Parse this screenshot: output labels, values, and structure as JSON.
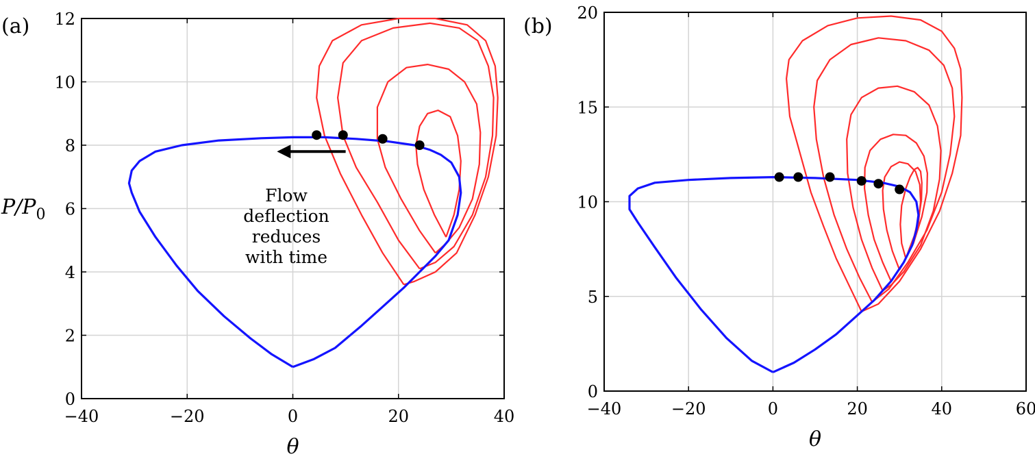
{
  "colors": {
    "polar": "#1414ff",
    "reflected": "#ff2b2b",
    "marker": "#000000",
    "grid": "#d4d4d4"
  },
  "chart_data": [
    {
      "type": "line",
      "panel_label": "(a)",
      "xlabel": "θ",
      "ylabel": "P/P",
      "ylabel_sub": "0",
      "xlim": [
        -40,
        40
      ],
      "ylim": [
        0,
        12
      ],
      "xticks": [
        -40,
        -20,
        0,
        20,
        40
      ],
      "yticks": [
        0,
        2,
        4,
        6,
        8,
        10,
        12
      ],
      "xtick_labels": [
        "−40",
        "−20",
        "0",
        "20",
        "40"
      ],
      "ytick_labels": [
        "0",
        "2",
        "4",
        "6",
        "8",
        "10",
        "12"
      ],
      "grid": true,
      "annotation": {
        "lines": [
          "Flow",
          "deflection",
          "reduces",
          "with time"
        ],
        "arrow_from": [
          10,
          7.8
        ],
        "arrow_to": [
          -3,
          7.8
        ]
      },
      "blue_polar": [
        [
          0,
          1
        ],
        [
          -4,
          1.4
        ],
        [
          -8,
          1.9
        ],
        [
          -13,
          2.6
        ],
        [
          -18,
          3.4
        ],
        [
          -22,
          4.2
        ],
        [
          -26,
          5.1
        ],
        [
          -29,
          5.9
        ],
        [
          -30.5,
          6.5
        ],
        [
          -31,
          6.8
        ],
        [
          -30.5,
          7.2
        ],
        [
          -29,
          7.5
        ],
        [
          -26,
          7.8
        ],
        [
          -21,
          8.0
        ],
        [
          -14,
          8.15
        ],
        [
          -6,
          8.22
        ],
        [
          0,
          8.25
        ],
        [
          6,
          8.25
        ],
        [
          12,
          8.2
        ],
        [
          18,
          8.12
        ],
        [
          23,
          8.0
        ],
        [
          26,
          7.85
        ],
        [
          28,
          7.7
        ],
        [
          30,
          7.45
        ],
        [
          31.5,
          7.0
        ],
        [
          31.8,
          6.5
        ],
        [
          31.2,
          5.8
        ],
        [
          29.5,
          5.0
        ],
        [
          27,
          4.5
        ],
        [
          24,
          4.0
        ],
        [
          21,
          3.5
        ],
        [
          17,
          2.9
        ],
        [
          13,
          2.3
        ],
        [
          8,
          1.6
        ],
        [
          4,
          1.25
        ],
        [
          0,
          1
        ]
      ],
      "red_polars": [
        [
          [
            21,
            3.6
          ],
          [
            17,
            4.6
          ],
          [
            13,
            5.8
          ],
          [
            9,
            7.1
          ],
          [
            6,
            8.3
          ],
          [
            4.5,
            9.5
          ],
          [
            5,
            10.5
          ],
          [
            7.5,
            11.3
          ],
          [
            13,
            11.8
          ],
          [
            20,
            12.0
          ],
          [
            27,
            12.0
          ],
          [
            33,
            11.8
          ],
          [
            36.5,
            11.3
          ],
          [
            38.3,
            10.5
          ],
          [
            38.8,
            9.5
          ],
          [
            38.5,
            8.3
          ],
          [
            37,
            7.0
          ],
          [
            34.5,
            5.8
          ],
          [
            31,
            4.6
          ],
          [
            27,
            4.0
          ],
          [
            23,
            3.7
          ],
          [
            21,
            3.6
          ]
        ],
        [
          [
            24,
            4.1
          ],
          [
            20,
            5.0
          ],
          [
            16,
            6.2
          ],
          [
            12,
            7.3
          ],
          [
            9.5,
            8.3
          ],
          [
            8.5,
            9.5
          ],
          [
            9.5,
            10.6
          ],
          [
            13,
            11.3
          ],
          [
            19,
            11.7
          ],
          [
            26,
            11.85
          ],
          [
            31.5,
            11.7
          ],
          [
            35,
            11.3
          ],
          [
            37,
            10.5
          ],
          [
            38,
            9.5
          ],
          [
            37.8,
            8.3
          ],
          [
            36.5,
            7.0
          ],
          [
            34,
            5.8
          ],
          [
            30.5,
            4.8
          ],
          [
            27,
            4.3
          ],
          [
            24,
            4.1
          ]
        ],
        [
          [
            27,
            4.6
          ],
          [
            24,
            5.3
          ],
          [
            20.5,
            6.3
          ],
          [
            17.5,
            7.3
          ],
          [
            16,
            8.2
          ],
          [
            16,
            9.2
          ],
          [
            18,
            10.0
          ],
          [
            21.5,
            10.45
          ],
          [
            25.5,
            10.55
          ],
          [
            29.5,
            10.4
          ],
          [
            32.5,
            10.0
          ],
          [
            34.8,
            9.3
          ],
          [
            35.5,
            8.4
          ],
          [
            35.3,
            7.4
          ],
          [
            34,
            6.3
          ],
          [
            31.5,
            5.4
          ],
          [
            29,
            4.9
          ],
          [
            27,
            4.6
          ]
        ],
        [
          [
            29,
            5.1
          ],
          [
            26.8,
            5.8
          ],
          [
            24.8,
            6.6
          ],
          [
            23.6,
            7.4
          ],
          [
            23.3,
            8.0
          ],
          [
            24,
            8.6
          ],
          [
            25.5,
            9.0
          ],
          [
            27.5,
            9.1
          ],
          [
            29.8,
            8.9
          ],
          [
            31.2,
            8.3
          ],
          [
            31.8,
            7.5
          ],
          [
            31.5,
            6.6
          ],
          [
            30.5,
            5.8
          ],
          [
            29,
            5.1
          ]
        ]
      ],
      "markers": [
        [
          4.5,
          8.32
        ],
        [
          9.5,
          8.32
        ],
        [
          17,
          8.2
        ],
        [
          24,
          8.0
        ]
      ]
    },
    {
      "type": "line",
      "panel_label": "(b)",
      "xlabel": "θ",
      "ylabel": "",
      "xlim": [
        -40,
        60
      ],
      "ylim": [
        0,
        20
      ],
      "xticks": [
        -40,
        -20,
        0,
        20,
        40,
        60
      ],
      "yticks": [
        0,
        5,
        10,
        15,
        20
      ],
      "xtick_labels": [
        "−40",
        "−20",
        "0",
        "20",
        "40",
        "60"
      ],
      "ytick_labels": [
        "0",
        "5",
        "10",
        "15",
        "20"
      ],
      "grid": true,
      "blue_polar": [
        [
          0,
          1
        ],
        [
          -5,
          1.6
        ],
        [
          -11,
          2.8
        ],
        [
          -17,
          4.3
        ],
        [
          -23,
          6.0
        ],
        [
          -28,
          7.6
        ],
        [
          -32,
          8.9
        ],
        [
          -34,
          9.6
        ],
        [
          -34,
          10.3
        ],
        [
          -32,
          10.7
        ],
        [
          -28,
          11.0
        ],
        [
          -20,
          11.15
        ],
        [
          -10,
          11.25
        ],
        [
          0,
          11.3
        ],
        [
          10,
          11.25
        ],
        [
          20,
          11.15
        ],
        [
          26,
          11.0
        ],
        [
          30,
          10.8
        ],
        [
          32.5,
          10.5
        ],
        [
          34,
          10.0
        ],
        [
          34.5,
          9.3
        ],
        [
          34,
          8.5
        ],
        [
          33,
          7.7
        ],
        [
          31,
          6.8
        ],
        [
          28,
          5.8
        ],
        [
          24,
          4.8
        ],
        [
          20,
          4.0
        ],
        [
          15,
          3.0
        ],
        [
          10,
          2.2
        ],
        [
          5,
          1.5
        ],
        [
          0,
          1
        ]
      ],
      "red_polars": [
        [
          [
            21,
            4.2
          ],
          [
            18,
            5.6
          ],
          [
            15,
            7.0
          ],
          [
            12,
            8.7
          ],
          [
            9,
            10.5
          ],
          [
            6.5,
            12.5
          ],
          [
            4,
            14.5
          ],
          [
            3.2,
            16.5
          ],
          [
            3.8,
            17.5
          ],
          [
            7,
            18.5
          ],
          [
            13,
            19.3
          ],
          [
            20,
            19.7
          ],
          [
            28,
            19.8
          ],
          [
            35,
            19.6
          ],
          [
            40,
            19.0
          ],
          [
            43,
            18.1
          ],
          [
            44.5,
            17.0
          ],
          [
            44.8,
            15.5
          ],
          [
            44.5,
            13.5
          ],
          [
            42.5,
            11.5
          ],
          [
            39.5,
            9.5
          ],
          [
            35,
            7.5
          ],
          [
            30,
            5.8
          ],
          [
            25,
            4.6
          ],
          [
            21,
            4.2
          ]
        ],
        [
          [
            23.5,
            4.7
          ],
          [
            20.5,
            6.0
          ],
          [
            17.5,
            7.5
          ],
          [
            14.5,
            9.3
          ],
          [
            12,
            11.3
          ],
          [
            10.3,
            13.3
          ],
          [
            9.7,
            15.0
          ],
          [
            10.5,
            16.4
          ],
          [
            13.5,
            17.5
          ],
          [
            18.5,
            18.3
          ],
          [
            25,
            18.65
          ],
          [
            31.5,
            18.5
          ],
          [
            37,
            18.0
          ],
          [
            40.5,
            17.2
          ],
          [
            42.5,
            16.0
          ],
          [
            43,
            14.5
          ],
          [
            42,
            12.5
          ],
          [
            40,
            10.5
          ],
          [
            36.5,
            8.5
          ],
          [
            32,
            6.8
          ],
          [
            27.5,
            5.4
          ],
          [
            23.5,
            4.7
          ]
        ],
        [
          [
            26,
            5.3
          ],
          [
            23.5,
            6.5
          ],
          [
            21,
            8.0
          ],
          [
            19,
            9.7
          ],
          [
            17.7,
            11.5
          ],
          [
            17.5,
            13.3
          ],
          [
            18.5,
            14.6
          ],
          [
            21,
            15.5
          ],
          [
            25,
            16.0
          ],
          [
            29.5,
            16.1
          ],
          [
            33.5,
            15.8
          ],
          [
            37,
            15.1
          ],
          [
            39,
            14.0
          ],
          [
            39.8,
            12.7
          ],
          [
            39.5,
            11.2
          ],
          [
            38,
            9.5
          ],
          [
            35,
            7.7
          ],
          [
            31,
            6.3
          ],
          [
            28,
            5.6
          ],
          [
            26,
            5.3
          ]
        ],
        [
          [
            28,
            5.8
          ],
          [
            26,
            6.8
          ],
          [
            24,
            8.0
          ],
          [
            22.6,
            9.3
          ],
          [
            21.7,
            10.7
          ],
          [
            21.8,
            11.8
          ],
          [
            23,
            12.7
          ],
          [
            25.5,
            13.3
          ],
          [
            28.5,
            13.55
          ],
          [
            31.5,
            13.5
          ],
          [
            34,
            13.1
          ],
          [
            35.8,
            12.4
          ],
          [
            36.6,
            11.5
          ],
          [
            36.5,
            10.5
          ],
          [
            35.3,
            9.2
          ],
          [
            33.3,
            7.8
          ],
          [
            30.5,
            6.6
          ],
          [
            28,
            5.8
          ]
        ],
        [
          [
            30,
            6.4
          ],
          [
            28.3,
            7.4
          ],
          [
            27,
            8.5
          ],
          [
            26.2,
            9.6
          ],
          [
            26,
            10.6
          ],
          [
            26.5,
            11.3
          ],
          [
            28,
            11.85
          ],
          [
            30,
            12.1
          ],
          [
            32,
            12.0
          ],
          [
            33.8,
            11.6
          ],
          [
            34.8,
            10.9
          ],
          [
            35,
            10.0
          ],
          [
            34.5,
            8.9
          ],
          [
            33,
            7.8
          ],
          [
            31.5,
            7.0
          ],
          [
            30,
            6.4
          ]
        ],
        [
          [
            31.5,
            7.0
          ],
          [
            30.5,
            7.8
          ],
          [
            30.2,
            8.8
          ],
          [
            30.5,
            9.8
          ],
          [
            31.5,
            10.7
          ],
          [
            32.5,
            11.3
          ],
          [
            33.5,
            11.7
          ],
          [
            34.3,
            11.8
          ],
          [
            35,
            11.6
          ],
          [
            35.3,
            11.0
          ],
          [
            35.2,
            10.1
          ],
          [
            34.6,
            9.2
          ],
          [
            33.5,
            8.2
          ],
          [
            32.3,
            7.5
          ],
          [
            31.5,
            7.0
          ]
        ]
      ],
      "markers": [
        [
          1.5,
          11.3
        ],
        [
          6,
          11.3
        ],
        [
          13.5,
          11.3
        ],
        [
          21,
          11.1
        ],
        [
          25,
          10.95
        ],
        [
          30,
          10.65
        ]
      ]
    }
  ]
}
